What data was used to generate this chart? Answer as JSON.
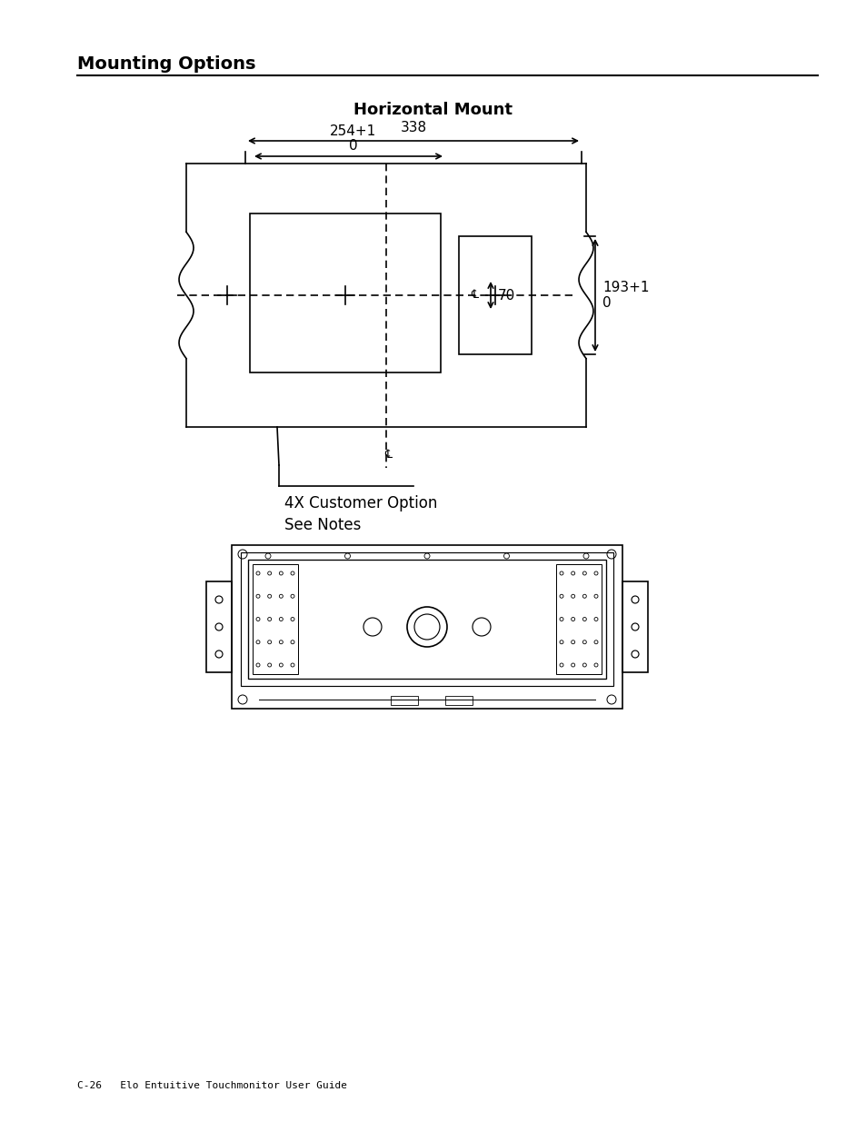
{
  "page_title": "Mounting Options",
  "section_title": "Horizontal Mount",
  "dim_338": "338",
  "dim_254": "254+1\n0",
  "dim_70": "70",
  "dim_193": "193+1\n0",
  "note_text": "4X Customer Option\nSee Notes",
  "footer_text": "C-26   Elo Entuitive Touchmonitor User Guide",
  "bg_color": "#ffffff",
  "line_color": "#000000",
  "title_fontsize": 14,
  "section_fontsize": 13,
  "dim_fontsize": 11,
  "footer_fontsize": 8
}
